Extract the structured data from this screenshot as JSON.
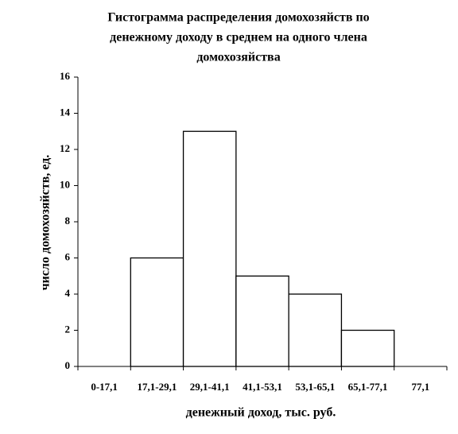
{
  "chart_data": {
    "type": "bar",
    "title": [
      "Гистограмма распределения домохозяйств по",
      "денежному доходу  в среднем на одного члена",
      "домохозяйства"
    ],
    "x_label": "денежный доход, тыс. руб.",
    "y_label": "число домохозяйств, ед.",
    "categories": [
      "0-17,1",
      "17,1-29,1",
      "29,1-41,1",
      "41,1-53,1",
      "53,1-65,1",
      "65,1-77,1",
      "77,1"
    ],
    "values": [
      0,
      6,
      13,
      5,
      4,
      2,
      0
    ],
    "color": "#ffffff",
    "ylim": [
      0,
      16
    ],
    "yticks": [
      0,
      2,
      4,
      6,
      8,
      10,
      12,
      14,
      16
    ],
    "grid": false
  }
}
